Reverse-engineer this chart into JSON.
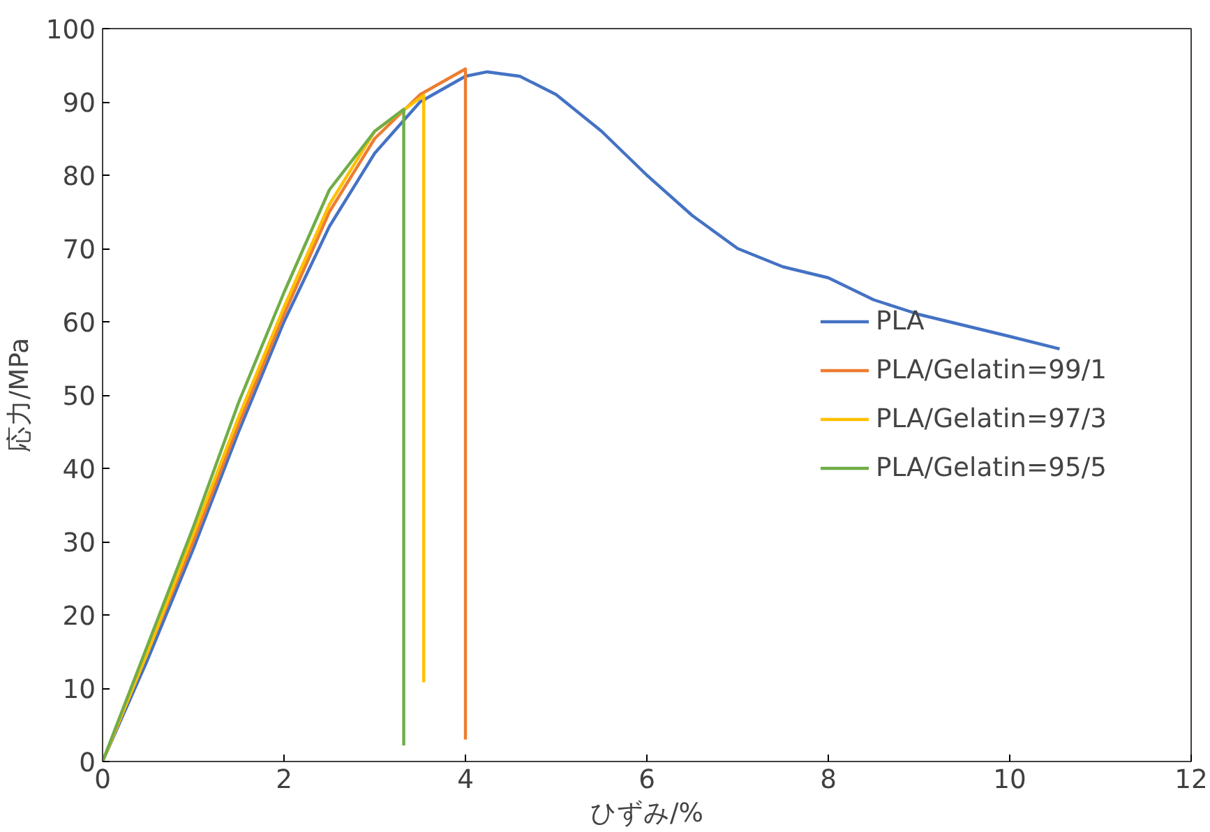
{
  "chart_data": {
    "type": "line",
    "xlabel": "ひずみ/%",
    "ylabel": "応力/MPa",
    "xlim": [
      0,
      12
    ],
    "ylim": [
      0,
      100
    ],
    "xticks": [
      0,
      2,
      4,
      6,
      8,
      10,
      12
    ],
    "yticks": [
      0,
      10,
      20,
      30,
      40,
      50,
      60,
      70,
      80,
      90,
      100
    ],
    "grid": false,
    "legend": "right",
    "marker": "none",
    "line_style": "solid",
    "series": [
      {
        "name": "PLA",
        "color": "#4472c4",
        "x": [
          0,
          0.5,
          1,
          1.5,
          2,
          2.5,
          3,
          3.5,
          4,
          4.24,
          4.6,
          5,
          5.5,
          6,
          6.5,
          7,
          7.5,
          8,
          8.5,
          9,
          9.5,
          10,
          10.55
        ],
        "values": [
          0,
          14,
          29,
          45,
          60,
          73,
          83,
          90,
          93.5,
          94.1,
          93.5,
          91,
          86,
          80,
          74.5,
          70,
          67.5,
          66,
          63,
          61,
          59.5,
          58,
          56.3
        ]
      },
      {
        "name": "PLA/Gelatin=99/1",
        "color": "#ed7d31",
        "x": [
          0,
          0.5,
          1,
          1.5,
          2,
          2.5,
          3,
          3.5,
          4.0,
          4.0
        ],
        "values": [
          0,
          15,
          30,
          46,
          61,
          75,
          85,
          91,
          94.5,
          3
        ]
      },
      {
        "name": "PLA/Gelatin=97/3",
        "color": "#ffc000",
        "x": [
          0,
          0.5,
          1,
          1.5,
          2,
          2.5,
          3,
          3.54,
          3.54
        ],
        "values": [
          0,
          15,
          31,
          47,
          62,
          76,
          86,
          90.9,
          10.8
        ]
      },
      {
        "name": "PLA/Gelatin=95/5",
        "color": "#70ad47",
        "x": [
          0,
          0.5,
          1,
          1.5,
          2,
          2.5,
          3,
          3.32,
          3.32
        ],
        "values": [
          0,
          16,
          32,
          49,
          64,
          78,
          86,
          89,
          2.2
        ]
      }
    ]
  }
}
